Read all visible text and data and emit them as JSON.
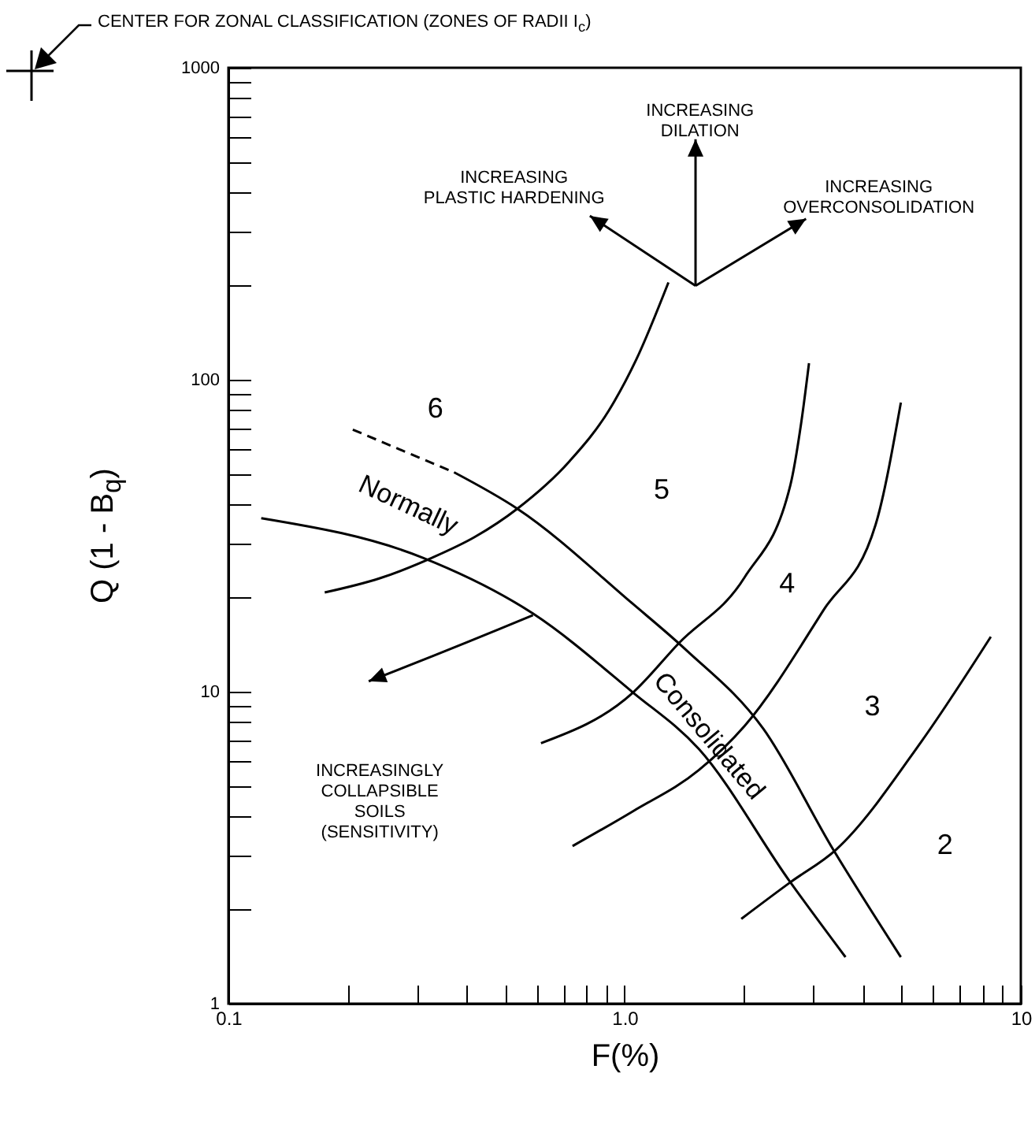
{
  "chart_data": {
    "type": "line",
    "xlabel": "F(%)",
    "ylabel": "Q (1 - B$_{q}$)",
    "log": "xy",
    "xlim": [
      0.1,
      10
    ],
    "ylim": [
      1,
      1000
    ],
    "xticks": [
      {
        "value": 0.1,
        "label": "0.1"
      },
      {
        "value": 0.2,
        "label": null
      },
      {
        "value": 0.3,
        "label": null
      },
      {
        "value": 0.4,
        "label": null
      },
      {
        "value": 0.5,
        "label": null
      },
      {
        "value": 0.6,
        "label": null
      },
      {
        "value": 0.7,
        "label": null
      },
      {
        "value": 0.8,
        "label": null
      },
      {
        "value": 0.9,
        "label": null
      },
      {
        "value": 1,
        "label": "1.0"
      },
      {
        "value": 2,
        "label": null
      },
      {
        "value": 3,
        "label": null
      },
      {
        "value": 4,
        "label": null
      },
      {
        "value": 5,
        "label": null
      },
      {
        "value": 6,
        "label": null
      },
      {
        "value": 7,
        "label": null
      },
      {
        "value": 8,
        "label": null
      },
      {
        "value": 9,
        "label": null
      },
      10
    ],
    "yticks": [
      1,
      {
        "value": 2,
        "label": null
      },
      {
        "value": 3,
        "label": null
      },
      {
        "value": 4,
        "label": null
      },
      {
        "value": 5,
        "label": null
      },
      {
        "value": 6,
        "label": null
      },
      {
        "value": 7,
        "label": null
      },
      {
        "value": 8,
        "label": null
      },
      {
        "value": 9,
        "label": null
      },
      10,
      {
        "value": 20,
        "label": null
      },
      {
        "value": 30,
        "label": null
      },
      {
        "value": 40,
        "label": null
      },
      {
        "value": 50,
        "label": null
      },
      {
        "value": 60,
        "label": null
      },
      {
        "value": 70,
        "label": null
      },
      {
        "value": 80,
        "label": null
      },
      {
        "value": 90,
        "label": null
      },
      100,
      {
        "value": 200,
        "label": null
      },
      {
        "value": 300,
        "label": null
      },
      {
        "value": 400,
        "label": null
      },
      {
        "value": 500,
        "label": null
      },
      {
        "value": 600,
        "label": null
      },
      {
        "value": 700,
        "label": null
      },
      {
        "value": 800,
        "label": null
      },
      {
        "value": 900,
        "label": null
      },
      1000
    ],
    "series": [
      {
        "color": "#000000",
        "x": [
          0.175,
          0.241,
          0.327,
          0.418,
          0.536,
          0.726,
          0.912,
          1.07,
          1.29
        ],
        "values": [
          20.8,
          23.1,
          26.9,
          31.3,
          38.6,
          54.8,
          79.6,
          116,
          205
        ]
      },
      {
        "color": "#000000",
        "x": [
          0.615,
          1.05,
          1.37,
          2.01,
          2.62,
          2.79,
          2.92
        ],
        "values": [
          6.84,
          9.94,
          14.3,
          23.3,
          45.9,
          72.6,
          113
        ]
      },
      {
        "color": "#000000",
        "x": [
          0.739,
          1.05,
          1.54,
          2.01,
          3.18,
          4.3,
          4.98
        ],
        "values": [
          3.2,
          4.14,
          5.61,
          7.78,
          18.3,
          34.3,
          84.5
        ]
      },
      {
        "color": "#000000",
        "x": [
          1.97,
          2.62,
          3.42,
          5.61,
          8.4
        ],
        "values": [
          1.87,
          2.45,
          3.12,
          6.92,
          15
        ]
      },
      {
        "color": "#000000",
        "line_style": "dashed",
        "x": [
          0.206,
          0.371
        ],
        "values": [
          69.2,
          50.5
        ]
      },
      {
        "color": "#000000",
        "x": [
          0.371,
          0.536,
          1.05,
          1.43,
          2.24,
          3.36,
          4.98
        ],
        "values": [
          50.5,
          38.6,
          19.1,
          13.6,
          7.6,
          3.12,
          1.41
        ]
      },
      {
        "color": "#000000",
        "x": [
          0.121,
          0.309,
          0.587,
          1.05,
          1.54,
          2.62,
          3.61
        ],
        "values": [
          36,
          26.9,
          17.8,
          9.94,
          6.55,
          2.45,
          1.41
        ]
      }
    ],
    "annotations": [
      "CENTER FOR ZONAL CLASSIFICATION (ZONES OF RADII I$_{c}$)",
      "6",
      "5",
      "4",
      "3",
      "2",
      "Normally",
      "Consolidated",
      "INCREASING\nDILATION",
      "INCREASING\nPLASTIC HARDENING",
      "INCREASING\nOVERCONSOLIDATION",
      "INCREASINGLY\nCOLLAPSIBLE\nSOILS\n(SENSITIVITY)"
    ]
  }
}
